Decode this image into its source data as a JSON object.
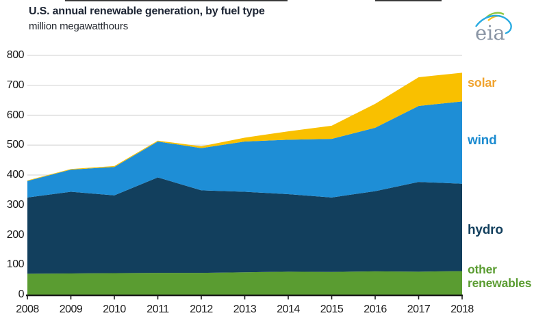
{
  "header": {
    "title": "U.S. annual renewable generation, by fuel type",
    "subtitle": "million megawatthours",
    "logo_text": "eia"
  },
  "legend": {
    "items": [
      {
        "label": "solar",
        "color": "#F0A32F"
      },
      {
        "label": "wind",
        "color": "#1B8BD0"
      },
      {
        "label": "hydro",
        "color": "#123F5D"
      },
      {
        "label": "other renewables",
        "color": "#5A9C31"
      }
    ]
  },
  "chart_data": {
    "type": "area",
    "stacked": true,
    "title": "U.S. annual renewable generation, by fuel type",
    "subtitle_unit": "million megawatthours",
    "x": [
      2008,
      2009,
      2010,
      2011,
      2012,
      2013,
      2014,
      2015,
      2016,
      2017,
      2018
    ],
    "series": [
      {
        "name": "other renewables",
        "color": "#5A9C31",
        "values": [
          70,
          71,
          72,
          73,
          73,
          75,
          77,
          76,
          78,
          77,
          79
        ]
      },
      {
        "name": "hydro",
        "color": "#123F5D",
        "values": [
          255,
          273,
          260,
          319,
          276,
          269,
          259,
          249,
          268,
          300,
          292
        ]
      },
      {
        "name": "wind",
        "color": "#1E8ED6",
        "values": [
          55,
          74,
          95,
          120,
          141,
          168,
          182,
          196,
          212,
          254,
          275
        ]
      },
      {
        "name": "solar",
        "color": "#F9C000",
        "values": [
          2,
          2,
          3,
          3,
          6,
          13,
          28,
          44,
          80,
          96,
          96
        ]
      }
    ],
    "totals": [
      382,
      420,
      430,
      515,
      496,
      525,
      546,
      565,
      638,
      727,
      742
    ],
    "ylim": [
      0,
      800
    ],
    "y_ticks": [
      0,
      100,
      200,
      300,
      400,
      500,
      600,
      700,
      800
    ],
    "grid": "horizontal",
    "grid_color": "#d9d9d9",
    "axis_color": "#1a1a1a",
    "legend_position": "right-inline"
  }
}
